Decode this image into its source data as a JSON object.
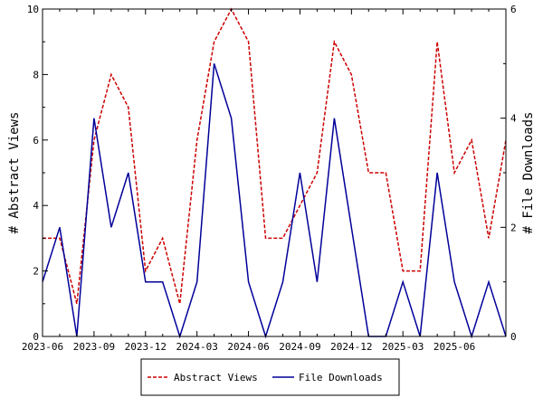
{
  "chart_data": {
    "type": "line",
    "x": [
      "2023-06",
      "2023-07",
      "2023-08",
      "2023-09",
      "2023-10",
      "2023-11",
      "2023-12",
      "2024-01",
      "2024-02",
      "2024-03",
      "2024-04",
      "2024-05",
      "2024-06",
      "2024-07",
      "2024-08",
      "2024-09",
      "2024-10",
      "2024-11",
      "2024-12",
      "2025-01",
      "2025-02",
      "2025-03",
      "2025-04",
      "2025-05",
      "2025-06",
      "2025-07",
      "2025-08",
      "2025-09"
    ],
    "x_tick_labels": [
      "2023-06",
      "2023-09",
      "2023-12",
      "2024-03",
      "2024-06",
      "2024-09",
      "2024-12",
      "2025-03",
      "2025-06"
    ],
    "series": [
      {
        "name": "Abstract Views",
        "axis": "left",
        "color": "#cc0000",
        "style": "dashed",
        "values": [
          3,
          3,
          1,
          6,
          8,
          7,
          2,
          3,
          1,
          6,
          9,
          10,
          9,
          3,
          3,
          4,
          5,
          9,
          8,
          5,
          5,
          2,
          2,
          9,
          5,
          6,
          3,
          6
        ]
      },
      {
        "name": "File Downloads",
        "axis": "right",
        "color": "#000099",
        "style": "solid",
        "values": [
          1,
          2,
          0,
          4,
          2,
          3,
          1,
          1,
          0,
          1,
          5,
          4,
          1,
          0,
          1,
          3,
          1,
          4,
          2,
          0,
          0,
          1,
          0,
          3,
          1,
          0,
          1,
          0
        ]
      }
    ],
    "ylabel_left": "# Abstract Views",
    "ylabel_right": "# File Downloads",
    "ylim_left": [
      0,
      10
    ],
    "ylim_right": [
      0,
      6
    ],
    "yticks_left": [
      0,
      2,
      4,
      6,
      8,
      10
    ],
    "yticks_right": [
      0,
      2,
      4,
      6
    ],
    "grid": false,
    "legend_placement": "bottom-center"
  }
}
